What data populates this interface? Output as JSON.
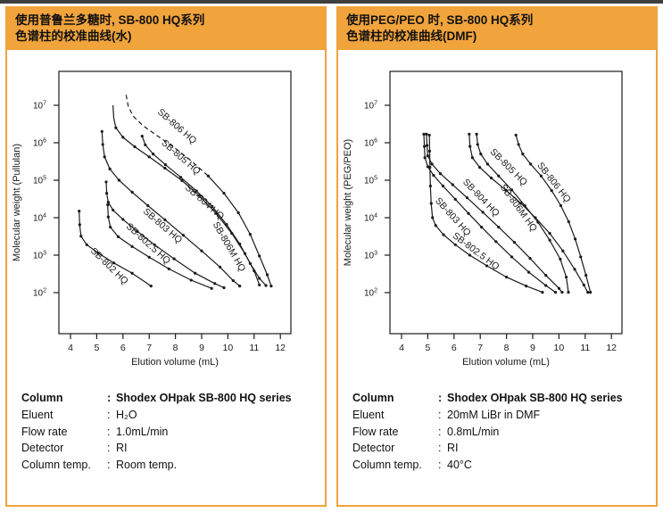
{
  "page": {
    "top_strip_color": "#3f3f3f",
    "background": "#ffffff"
  },
  "theme": {
    "orange": "#F1A33C",
    "text": "#111111",
    "curve_color": "#1a1a1a"
  },
  "panels": [
    {
      "header": {
        "line1": "使用普鲁兰多糖时, SB-800 HQ系列",
        "line2": "色谱柱的校准曲线(水)"
      },
      "chart_data": {
        "type": "line",
        "xlabel": "Elution volume (mL)",
        "ylabel": "Molecular weight (Pullulan)",
        "x_range": [
          4,
          12
        ],
        "x_ticks": [
          4,
          5,
          6,
          7,
          8,
          9,
          10,
          11,
          12
        ],
        "y_scale": "log",
        "y_ticks_exponents": [
          2,
          3,
          4,
          5,
          6,
          7
        ],
        "grid": false,
        "series": [
          {
            "name": "SB-802 HQ",
            "points": [
              [
                4.33,
                15000
              ],
              [
                4.35,
                6500
              ],
              [
                4.4,
                3200
              ],
              [
                4.62,
                1900
              ],
              [
                5.05,
                1150
              ],
              [
                5.65,
                620
              ],
              [
                6.35,
                330
              ],
              [
                7.07,
                150
              ]
            ],
            "label": {
              "at": [
                4.75,
                1250
              ],
              "angle": 44
            }
          },
          {
            "name": "SB-802.5 HQ",
            "points": [
              [
                5.42,
                22000
              ],
              [
                5.44,
                10500
              ],
              [
                5.52,
                5600
              ],
              [
                5.82,
                3100
              ],
              [
                6.35,
                1700
              ],
              [
                7.0,
                880
              ],
              [
                7.75,
                430
              ],
              [
                8.6,
                215
              ],
              [
                9.38,
                130
              ]
            ],
            "label": {
              "at": [
                6.1,
                5600
              ],
              "angle": 42
            }
          },
          {
            "name": "SB-803 HQ",
            "points": [
              [
                5.36,
                90000
              ],
              [
                5.38,
                45000
              ],
              [
                5.44,
                26000
              ],
              [
                5.62,
                16000
              ],
              [
                6.0,
                9000
              ],
              [
                6.55,
                4300
              ],
              [
                7.2,
                1900
              ],
              [
                7.95,
                800
              ],
              [
                8.75,
                330
              ],
              [
                9.5,
                175
              ],
              [
                9.85,
                135
              ]
            ],
            "label": {
              "at": [
                6.75,
                14000
              ],
              "angle": 41
            }
          },
          {
            "name": "SB-804 HQ",
            "points": [
              [
                5.2,
                2000000
              ],
              [
                5.23,
                900000
              ],
              [
                5.3,
                420000
              ],
              [
                5.5,
                200000
              ],
              [
                5.85,
                100000
              ],
              [
                6.35,
                48000
              ],
              [
                6.95,
                21000
              ],
              [
                7.6,
                8800
              ],
              [
                8.3,
                3400
              ],
              [
                9.0,
                1300
              ],
              [
                9.7,
                480
              ],
              [
                10.2,
                210
              ],
              [
                10.45,
                150
              ]
            ],
            "label": {
              "at": [
                8.35,
                60000
              ],
              "angle": 41
            }
          },
          {
            "name": "SB-805 HQ",
            "points": [
              [
                5.62,
                10000000
              ],
              [
                5.65,
                4500000
              ],
              [
                5.73,
                2500000
              ],
              [
                6.0,
                1400000
              ],
              [
                6.45,
                780000
              ],
              [
                7.0,
                420000
              ],
              [
                7.6,
                210000
              ],
              [
                8.25,
                98000
              ],
              [
                8.9,
                39000
              ],
              [
                9.55,
                13000
              ],
              [
                10.15,
                3800
              ],
              [
                10.65,
                1100
              ],
              [
                11.0,
                380
              ],
              [
                11.2,
                160
              ]
            ],
            "marker_from": 2,
            "label": {
              "at": [
                7.45,
                950000
              ],
              "angle": 41
            }
          },
          {
            "name": "SB-806 HQ",
            "points": [
              [
                6.12,
                19000000
              ],
              [
                6.2,
                9500000
              ],
              [
                6.38,
                5200000
              ],
              [
                6.75,
                2900000
              ],
              [
                7.3,
                1550000
              ],
              [
                7.95,
                750000
              ],
              [
                8.6,
                330000
              ],
              [
                9.25,
                130000
              ],
              [
                9.85,
                45000
              ],
              [
                10.4,
                13500
              ],
              [
                10.85,
                3600
              ],
              [
                11.2,
                950
              ],
              [
                11.5,
                300
              ],
              [
                11.65,
                150
              ]
            ],
            "dashed_until": 7,
            "label": {
              "at": [
                7.3,
                6300000
              ],
              "angle": 41
            }
          },
          {
            "name": "SB-806M HQ",
            "points": [
              [
                6.73,
                1500000
              ],
              [
                6.85,
                880000
              ],
              [
                7.15,
                500000
              ],
              [
                7.62,
                260000
              ],
              [
                8.2,
                120000
              ],
              [
                8.8,
                52000
              ],
              [
                9.4,
                20000
              ],
              [
                9.95,
                6600
              ],
              [
                10.45,
                2000
              ],
              [
                10.85,
                600
              ],
              [
                11.2,
                240
              ],
              [
                11.45,
                155
              ]
            ],
            "label": {
              "at": [
                9.42,
                6800
              ],
              "angle": 60
            }
          }
        ]
      },
      "conditions": [
        {
          "label": "Column",
          "value": "Shodex OHpak SB-800 HQ series",
          "bold": true
        },
        {
          "label": "Eluent",
          "value": "H₂O",
          "bold": false
        },
        {
          "label": "Flow rate",
          "value": "1.0mL/min",
          "bold": false
        },
        {
          "label": "Detector",
          "value": "RI",
          "bold": false
        },
        {
          "label": "Column temp.",
          "value": "Room temp.",
          "bold": false
        }
      ]
    },
    {
      "header": {
        "line1": "使用PEG/PEO 时, SB-800 HQ系列",
        "line2": "色谱柱的校准曲线(DMF)"
      },
      "chart_data": {
        "type": "line",
        "xlabel": "Elution volume (mL)",
        "ylabel": "Molecular weight (PEG/PEO)",
        "x_range": [
          4,
          12
        ],
        "x_ticks": [
          4,
          5,
          6,
          7,
          8,
          9,
          10,
          11,
          12
        ],
        "y_scale": "log",
        "y_ticks_exponents": [
          2,
          3,
          4,
          5,
          6,
          7
        ],
        "grid": false,
        "series": [
          {
            "name": "SB-802.5 HQ",
            "points": [
              [
                5.06,
                1600000
              ],
              [
                5.07,
                600000
              ],
              [
                5.08,
                220000
              ],
              [
                5.1,
                70000
              ],
              [
                5.13,
                24000
              ],
              [
                5.18,
                10000
              ],
              [
                5.3,
                6200
              ],
              [
                5.6,
                3500
              ],
              [
                6.05,
                1900
              ],
              [
                6.6,
                1000
              ],
              [
                7.25,
                520
              ],
              [
                8.0,
                260
              ],
              [
                8.75,
                150
              ],
              [
                9.37,
                102
              ]
            ],
            "label": {
              "at": [
                5.92,
                3100
              ],
              "angle": 37
            }
          },
          {
            "name": "SB-803 HQ",
            "points": [
              [
                4.85,
                1700000
              ],
              [
                4.87,
                800000
              ],
              [
                4.89,
                400000
              ],
              [
                5.0,
                230000
              ],
              [
                5.22,
                135000
              ],
              [
                5.58,
                70000
              ],
              [
                6.05,
                31000
              ],
              [
                6.55,
                13000
              ],
              [
                7.05,
                5600
              ],
              [
                7.6,
                2300
              ],
              [
                8.2,
                900
              ],
              [
                8.85,
                350
              ],
              [
                9.5,
                155
              ],
              [
                9.87,
                102
              ]
            ],
            "label": {
              "at": [
                5.27,
                28000
              ],
              "angle": 48
            }
          },
          {
            "name": "SB-804 HQ",
            "points": [
              [
                4.95,
                1700000
              ],
              [
                4.97,
                850000
              ],
              [
                5.0,
                450000
              ],
              [
                5.16,
                270000
              ],
              [
                5.48,
                150000
              ],
              [
                5.95,
                76000
              ],
              [
                6.5,
                34000
              ],
              [
                7.1,
                14000
              ],
              [
                7.7,
                5600
              ],
              [
                8.3,
                2200
              ],
              [
                8.9,
                820
              ],
              [
                9.5,
                290
              ],
              [
                10.0,
                130
              ],
              [
                10.12,
                102
              ]
            ],
            "label": {
              "at": [
                6.32,
                87000
              ],
              "angle": 46
            }
          },
          {
            "name": "SB-805 HQ",
            "points": [
              [
                6.58,
                1700000
              ],
              [
                6.61,
                800000
              ],
              [
                6.7,
                400000
              ],
              [
                6.98,
                220000
              ],
              [
                7.42,
                115000
              ],
              [
                7.98,
                54000
              ],
              [
                8.55,
                24000
              ],
              [
                9.1,
                10000
              ],
              [
                9.65,
                3800
              ],
              [
                10.15,
                1300
              ],
              [
                10.6,
                420
              ],
              [
                10.95,
                160
              ],
              [
                11.1,
                102
              ]
            ],
            "label": {
              "at": [
                7.36,
                560000
              ],
              "angle": 45
            }
          },
          {
            "name": "SB-806M HQ",
            "points": [
              [
                6.86,
                1700000
              ],
              [
                6.9,
                900000
              ],
              [
                7.02,
                500000
              ],
              [
                7.28,
                270000
              ],
              [
                7.7,
                130000
              ],
              [
                8.2,
                55000
              ],
              [
                8.7,
                21000
              ],
              [
                9.2,
                7600
              ],
              [
                9.65,
                2500
              ],
              [
                10.05,
                780
              ],
              [
                10.28,
                260
              ],
              [
                10.36,
                102
              ]
            ],
            "label": {
              "at": [
                7.75,
                66000
              ],
              "angle": 54
            }
          },
          {
            "name": "SB-806 HQ",
            "points": [
              [
                8.36,
                1600000
              ],
              [
                8.46,
                900000
              ],
              [
                8.62,
                500000
              ],
              [
                8.92,
                270000
              ],
              [
                9.32,
                130000
              ],
              [
                9.72,
                53000
              ],
              [
                10.07,
                21000
              ],
              [
                10.37,
                7800
              ],
              [
                10.62,
                2700
              ],
              [
                10.83,
                900
              ],
              [
                11.03,
                290
              ],
              [
                11.2,
                102
              ]
            ],
            "label": {
              "at": [
                9.16,
                250000
              ],
              "angle": 52
            }
          }
        ]
      },
      "conditions": [
        {
          "label": "Column",
          "value": "Shodex OHpak SB-800 HQ series",
          "bold": true
        },
        {
          "label": "Eluent",
          "value": "20mM LiBr in DMF",
          "bold": false
        },
        {
          "label": "Flow rate",
          "value": "0.8mL/min",
          "bold": false
        },
        {
          "label": "Detector",
          "value": "RI",
          "bold": false
        },
        {
          "label": "Column temp.",
          "value": "40°C",
          "bold": false
        }
      ]
    }
  ]
}
